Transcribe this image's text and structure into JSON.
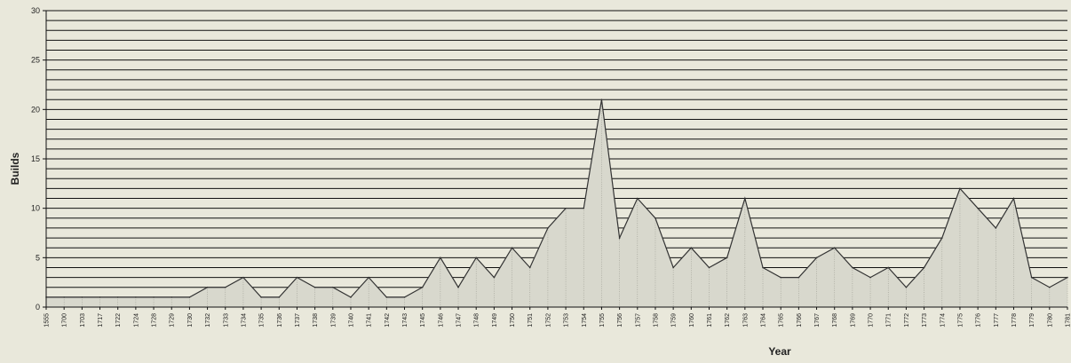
{
  "chart_data": {
    "type": "area",
    "title": "",
    "xlabel": "Year",
    "ylabel": "Builds",
    "ylim": [
      0,
      30
    ],
    "yticks": [
      0,
      5,
      10,
      15,
      20,
      25,
      30
    ],
    "grid": true,
    "legend": "none",
    "colors": {
      "fill": "#d8d8cd",
      "line": "#333333",
      "grid": "#111111",
      "background": "#e9e8db"
    },
    "categories": [
      "1555",
      "1700",
      "1703",
      "1717",
      "1722",
      "1724",
      "1728",
      "1729",
      "1730",
      "1732",
      "1733",
      "1734",
      "1735",
      "1736",
      "1737",
      "1738",
      "1739",
      "1740",
      "1741",
      "1742",
      "1743",
      "1745",
      "1746",
      "1747",
      "1748",
      "1749",
      "1750",
      "1751",
      "1752",
      "1753",
      "1754",
      "1755",
      "1756",
      "1757",
      "1758",
      "1759",
      "1760",
      "1761",
      "1762",
      "1763",
      "1764",
      "1765",
      "1766",
      "1767",
      "1768",
      "1769",
      "1770",
      "1771",
      "1772",
      "1773",
      "1774",
      "1775",
      "1776",
      "1777",
      "1778",
      "1779",
      "1780",
      "1781"
    ],
    "values": [
      1,
      1,
      1,
      1,
      1,
      1,
      1,
      1,
      1,
      2,
      2,
      3,
      1,
      1,
      3,
      2,
      2,
      1,
      3,
      1,
      1,
      2,
      5,
      2,
      5,
      3,
      6,
      4,
      8,
      10,
      10,
      21,
      7,
      11,
      9,
      4,
      6,
      4,
      5,
      11,
      4,
      3,
      3,
      5,
      6,
      4,
      3,
      4,
      2,
      4,
      7,
      12,
      10,
      8,
      11,
      3,
      2,
      3
    ]
  }
}
